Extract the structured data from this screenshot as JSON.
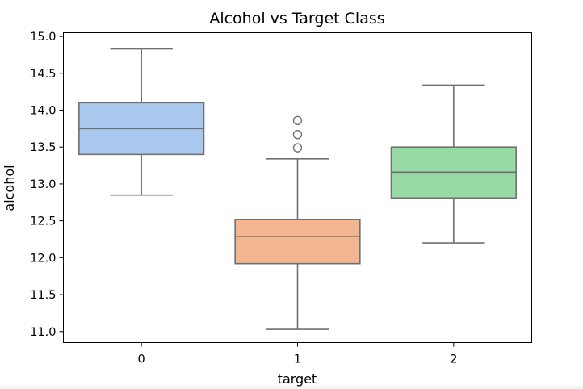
{
  "chart_data": {
    "type": "box",
    "title": "Alcohol vs Target Class",
    "xlabel": "target",
    "ylabel": "alcohol",
    "categories": [
      "0",
      "1",
      "2"
    ],
    "ylim": [
      10.85,
      15.05
    ],
    "y_ticks": [
      "11.0",
      "11.5",
      "12.0",
      "12.5",
      "13.0",
      "13.5",
      "14.0",
      "14.5",
      "15.0"
    ],
    "grid": false,
    "boxes": [
      {
        "category": "0",
        "whisker_low": 12.85,
        "q1": 13.4,
        "median": 13.75,
        "q3": 14.1,
        "whisker_high": 14.83,
        "outliers": [],
        "color": "#a8c8ee"
      },
      {
        "category": "1",
        "whisker_low": 11.03,
        "q1": 11.92,
        "median": 12.29,
        "q3": 12.52,
        "whisker_high": 13.34,
        "outliers": [
          13.49,
          13.67,
          13.86
        ],
        "color": "#f4b690"
      },
      {
        "category": "2",
        "whisker_low": 12.2,
        "q1": 12.81,
        "median": 13.16,
        "q3": 13.5,
        "whisker_high": 14.34,
        "outliers": [],
        "color": "#97daa4"
      }
    ]
  }
}
